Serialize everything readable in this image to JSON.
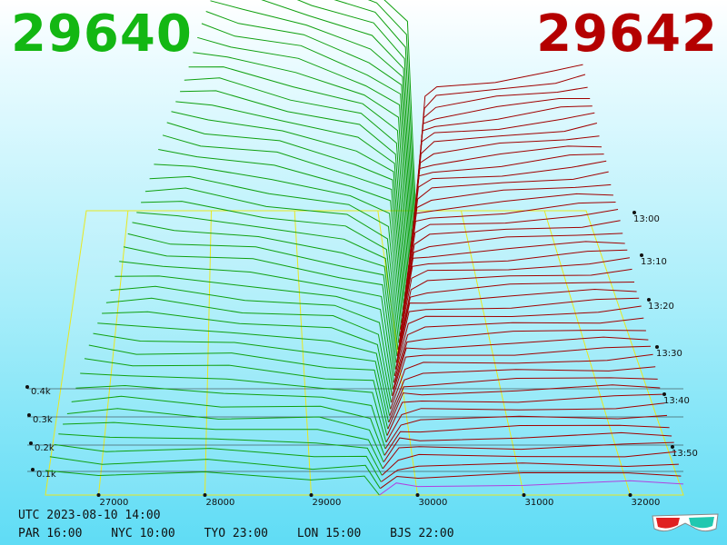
{
  "header": {
    "bid_price": "29640",
    "ask_price": "29642",
    "bid_color": "#13b713",
    "ask_color": "#b40000"
  },
  "footer": {
    "utc": "UTC 2023-08-10 14:00",
    "zones": [
      "PAR 16:00",
      "NYC 10:00",
      "TYO 23:00",
      "LON 15:00",
      "BJS 22:00"
    ]
  },
  "icons": {
    "glasses": "3d-glasses-icon"
  },
  "chart_data": {
    "type": "area",
    "view": "3d-depth-of-market",
    "x_ticks": [
      "27000",
      "28000",
      "29000",
      "30000",
      "31000",
      "32000"
    ],
    "volume_ticks": [
      "0.1k",
      "0.2k",
      "0.3k",
      "0.4k"
    ],
    "time_ticks": [
      "13:00",
      "13:10",
      "13:20",
      "13:30",
      "13:40",
      "13:50"
    ],
    "x_range": [
      26500,
      32500
    ],
    "mid_price": 29641,
    "bid_curves": [
      {
        "price_points": [
          26500,
          27000,
          28000,
          29000,
          29500,
          29640
        ],
        "cum_volume": [
          620,
          605,
          560,
          500,
          430,
          0
        ]
      },
      {
        "price_points": [
          26500,
          27000,
          28000,
          29000,
          29500,
          29640
        ],
        "cum_volume": [
          550,
          535,
          495,
          440,
          370,
          0
        ]
      },
      {
        "price_points": [
          26500,
          27000,
          28000,
          29000,
          29500,
          29640
        ],
        "cum_volume": [
          480,
          465,
          430,
          380,
          315,
          0
        ]
      },
      {
        "price_points": [
          26500,
          27000,
          28000,
          29000,
          29500,
          29640
        ],
        "cum_volume": [
          410,
          396,
          365,
          322,
          265,
          0
        ]
      }
    ],
    "ask_curves": [
      {
        "price_points": [
          29642,
          29800,
          30000,
          31000,
          32000,
          32500
        ],
        "cum_volume": [
          0,
          260,
          280,
          300,
          320,
          330
        ]
      },
      {
        "price_points": [
          29642,
          29800,
          30000,
          31000,
          32000,
          32500
        ],
        "cum_volume": [
          0,
          230,
          250,
          268,
          285,
          295
        ]
      },
      {
        "price_points": [
          29642,
          29800,
          30000,
          31000,
          32000,
          32500
        ],
        "cum_volume": [
          0,
          200,
          218,
          234,
          250,
          258
        ]
      },
      {
        "price_points": [
          29642,
          29800,
          30000,
          31000,
          32000,
          32500
        ],
        "cum_volume": [
          0,
          168,
          184,
          198,
          212,
          220
        ]
      }
    ],
    "bid_color": "#0fa00f",
    "ask_color": "#a00000",
    "latest_ask_color": "#b040e0",
    "grid_color": "#e8e820"
  }
}
